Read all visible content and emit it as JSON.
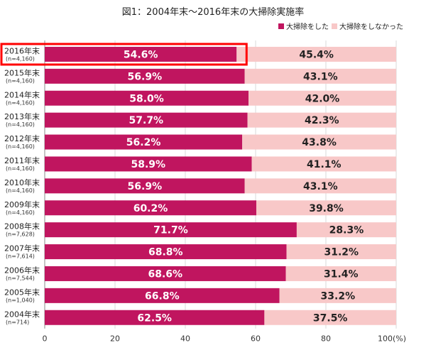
{
  "chart_data": {
    "type": "bar",
    "orientation": "horizontal",
    "stacked": true,
    "title": "図1：2004年末～2016年末の大掃除実施率",
    "categories": [
      "2016年末",
      "2015年末",
      "2014年末",
      "2013年末",
      "2012年末",
      "2011年末",
      "2010年末",
      "2009年末",
      "2008年末",
      "2007年末",
      "2006年末",
      "2005年末",
      "2004年末"
    ],
    "sample_sizes": [
      "(n=4,160)",
      "(n=4,160)",
      "(n=4,160)",
      "(n=4,160)",
      "(n=4,160)",
      "(n=4,160)",
      "(n=4,160)",
      "(n=4,160)",
      "(n=7,628)",
      "(n=7,614)",
      "(n=7,544)",
      "(n=1,040)",
      "(n=714)"
    ],
    "series": [
      {
        "name": "大掃除をした",
        "color": "#c0155f",
        "values": [
          54.6,
          56.9,
          58.0,
          57.7,
          56.2,
          58.9,
          56.9,
          60.2,
          71.7,
          68.8,
          68.6,
          66.8,
          62.5
        ],
        "labels": [
          "54.6%",
          "56.9%",
          "58.0%",
          "57.7%",
          "56.2%",
          "58.9%",
          "56.9%",
          "60.2%",
          "71.7%",
          "68.8%",
          "68.6%",
          "66.8%",
          "62.5%"
        ]
      },
      {
        "name": "大掃除をしなかった",
        "color": "#f8c8c8",
        "values": [
          45.4,
          43.1,
          42.0,
          42.3,
          43.8,
          41.1,
          43.1,
          39.8,
          28.3,
          31.2,
          31.4,
          33.2,
          37.5
        ],
        "labels": [
          "45.4%",
          "43.1%",
          "42.0%",
          "42.3%",
          "43.8%",
          "41.1%",
          "43.1%",
          "39.8%",
          "28.3%",
          "31.2%",
          "31.4%",
          "33.2%",
          "37.5%"
        ]
      }
    ],
    "xlim": [
      0,
      100
    ],
    "xticks": [
      0,
      20,
      40,
      60,
      80,
      100
    ],
    "xtick_labels": [
      "0",
      "20",
      "40",
      "60",
      "80",
      "100(%)"
    ],
    "legend_position": "top-right",
    "highlight": {
      "category": "2016年末",
      "color": "#ff0000"
    }
  }
}
